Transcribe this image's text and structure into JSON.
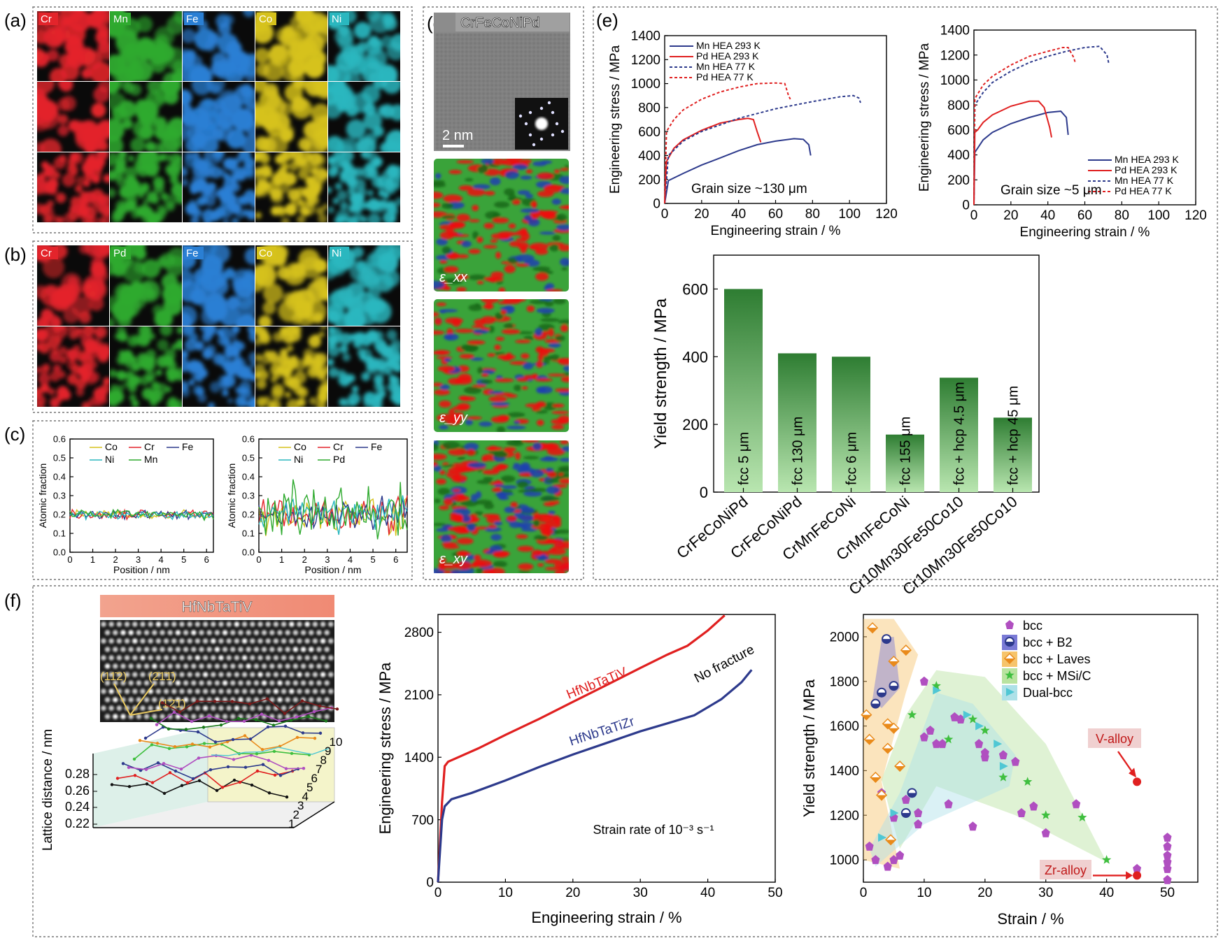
{
  "colors": {
    "cr": "#e3242b",
    "mn": "#2faa2f",
    "fe": "#2a7fd4",
    "co": "#d6c21c",
    "ni": "#2ab7bf",
    "pd": "#2faa2f",
    "bar_top": "#2e7d32",
    "bar_bottom": "#b9e6b0",
    "red": "#e02020",
    "blue": "#2d3a8c",
    "purple": "#b04fc0"
  },
  "panel_labels": {
    "a": "(a)",
    "b": "(b)",
    "c": "(c)",
    "d": "(d)",
    "e": "(e)",
    "f": "(f)"
  },
  "map_row_a": [
    "Cr",
    "Mn",
    "Fe",
    "Co",
    "Ni"
  ],
  "map_row_b": [
    "Cr",
    "Pd",
    "Fe",
    "Co",
    "Ni"
  ],
  "panel_d": {
    "title": "CrFeCoNiPd",
    "scale": "2 nm",
    "strain_labels": [
      "ε_xx",
      "ε_yy",
      "ε_xy"
    ]
  },
  "panel_f_image_title": "HfNbTaTiV",
  "miller": [
    "(11̄2)",
    "(2̄1̄1̄)",
    "(1̄2̄1̄)"
  ],
  "chart_data": [
    {
      "id": "c-left",
      "type": "line",
      "xlabel": "Position / nm",
      "ylabel": "Atomic fraction",
      "xlim": [
        0,
        6.3
      ],
      "ylim": [
        0,
        0.6
      ],
      "xticks": [
        "0",
        "1",
        "2",
        "3",
        "4",
        "5",
        "6"
      ],
      "yticks": [
        "0.0",
        "0.1",
        "0.2",
        "0.3",
        "0.4",
        "0.5",
        "0.6"
      ],
      "legend": [
        "Co",
        "Cr",
        "Fe",
        "Ni",
        "Mn"
      ],
      "series": [
        {
          "name": "Co",
          "color": "#d6c21c",
          "mean": 0.2,
          "amp": 0.03
        },
        {
          "name": "Cr",
          "color": "#e3242b",
          "mean": 0.2,
          "amp": 0.03
        },
        {
          "name": "Fe",
          "color": "#2d3a8c",
          "mean": 0.2,
          "amp": 0.03
        },
        {
          "name": "Ni",
          "color": "#2ab7bf",
          "mean": 0.2,
          "amp": 0.03
        },
        {
          "name": "Mn",
          "color": "#2faa2f",
          "mean": 0.2,
          "amp": 0.03
        }
      ]
    },
    {
      "id": "c-right",
      "type": "line",
      "xlabel": "Position / nm",
      "ylabel": "Atomic fraction",
      "xlim": [
        0,
        6.5
      ],
      "ylim": [
        0,
        0.6
      ],
      "xticks": [
        "0",
        "1",
        "2",
        "3",
        "4",
        "5",
        "6"
      ],
      "yticks": [
        "0.0",
        "0.1",
        "0.2",
        "0.3",
        "0.4",
        "0.5",
        "0.6"
      ],
      "legend": [
        "Co",
        "Cr",
        "Fe",
        "Ni",
        "Pd"
      ],
      "series": [
        {
          "name": "Co",
          "color": "#d6c21c",
          "mean": 0.2,
          "amp": 0.12
        },
        {
          "name": "Cr",
          "color": "#e3242b",
          "mean": 0.2,
          "amp": 0.12
        },
        {
          "name": "Fe",
          "color": "#2d3a8c",
          "mean": 0.2,
          "amp": 0.12
        },
        {
          "name": "Ni",
          "color": "#2ab7bf",
          "mean": 0.2,
          "amp": 0.12
        },
        {
          "name": "Pd",
          "color": "#2faa2f",
          "mean": 0.22,
          "amp": 0.18
        }
      ]
    },
    {
      "id": "e-left",
      "type": "line",
      "xlabel": "Engineering strain / %",
      "ylabel": "Engineering stress / MPa",
      "xlim": [
        0,
        120
      ],
      "ylim": [
        0,
        1400
      ],
      "xticks": [
        "0",
        "20",
        "40",
        "60",
        "80",
        "100",
        "120"
      ],
      "yticks": [
        "0",
        "200",
        "400",
        "600",
        "800",
        "1000",
        "1200",
        "1400"
      ],
      "annotation": "Grain size ~130 μm",
      "series": [
        {
          "name": "Mn HEA 293 K",
          "color": "#2d3a8c",
          "dash": false,
          "x": [
            0,
            2,
            10,
            20,
            30,
            40,
            50,
            60,
            70,
            75,
            78,
            79
          ],
          "y": [
            0,
            190,
            250,
            320,
            380,
            440,
            490,
            520,
            540,
            535,
            490,
            400
          ]
        },
        {
          "name": "Pd HEA 293 K",
          "color": "#e02020",
          "dash": false,
          "x": [
            0,
            1,
            5,
            10,
            20,
            30,
            40,
            45,
            48,
            50,
            52
          ],
          "y": [
            0,
            350,
            460,
            530,
            610,
            670,
            700,
            710,
            700,
            600,
            510
          ]
        },
        {
          "name": "Mn HEA 77 K",
          "color": "#2d3a8c",
          "dash": true,
          "x": [
            0,
            2,
            10,
            20,
            40,
            60,
            80,
            95,
            102,
            105,
            106
          ],
          "y": [
            0,
            400,
            520,
            600,
            710,
            790,
            850,
            890,
            900,
            880,
            840
          ]
        },
        {
          "name": "Pd HEA 77 K",
          "color": "#e02020",
          "dash": true,
          "x": [
            0,
            1,
            5,
            10,
            20,
            30,
            40,
            50,
            60,
            65,
            67,
            68
          ],
          "y": [
            0,
            600,
            700,
            780,
            870,
            930,
            970,
            1000,
            1005,
            1000,
            900,
            870
          ]
        }
      ]
    },
    {
      "id": "e-right",
      "type": "line",
      "xlabel": "Engineering strain / %",
      "ylabel": "Engineering stress / MPa",
      "xlim": [
        0,
        120
      ],
      "ylim": [
        0,
        1400
      ],
      "xticks": [
        "0",
        "20",
        "40",
        "60",
        "80",
        "100",
        "120"
      ],
      "yticks": [
        "0",
        "200",
        "400",
        "600",
        "800",
        "1000",
        "1200",
        "1400"
      ],
      "annotation": "Grain size ~5 μm",
      "series": [
        {
          "name": "Mn HEA 293 K",
          "color": "#2d3a8c",
          "dash": false,
          "x": [
            0,
            0.5,
            5,
            10,
            20,
            30,
            40,
            47,
            50,
            51
          ],
          "y": [
            0,
            420,
            520,
            580,
            650,
            700,
            740,
            750,
            700,
            560
          ]
        },
        {
          "name": "Pd HEA 293 K",
          "color": "#e02020",
          "dash": false,
          "x": [
            0,
            0.5,
            2,
            5,
            10,
            20,
            30,
            35,
            38,
            41,
            42
          ],
          "y": [
            0,
            580,
            600,
            660,
            720,
            790,
            830,
            830,
            780,
            620,
            540
          ]
        },
        {
          "name": "Mn HEA 77 K",
          "color": "#2d3a8c",
          "dash": true,
          "x": [
            0,
            0.5,
            5,
            10,
            20,
            30,
            40,
            50,
            60,
            68,
            72,
            73
          ],
          "y": [
            0,
            800,
            900,
            980,
            1070,
            1140,
            1190,
            1230,
            1260,
            1270,
            1200,
            1130
          ]
        },
        {
          "name": "Pd HEA 77 K",
          "color": "#e02020",
          "dash": true,
          "x": [
            0,
            0.5,
            5,
            10,
            20,
            30,
            40,
            48,
            51,
            54,
            55
          ],
          "y": [
            0,
            850,
            960,
            1030,
            1120,
            1190,
            1230,
            1260,
            1260,
            1180,
            1130
          ]
        }
      ]
    },
    {
      "id": "e-bar",
      "type": "bar",
      "ylabel": "Yield strength / MPa",
      "ylim": [
        0,
        700
      ],
      "yticks": [
        "0",
        "200",
        "400",
        "600"
      ],
      "categories": [
        "CrFeCoNiPd",
        "CrFeCoNiPd",
        "CrMnFeCoNi",
        "CrMnFeCoNi",
        "Cr10Mn30Fe50Co10",
        "Cr10Mn30Fe50Co10"
      ],
      "bar_labels": [
        "fcc 5 μm",
        "fcc 130 μm",
        "fcc 6 μm",
        "fcc 155 μm",
        "fcc + hcp 4.5 μm",
        "fcc + hcp 45 μm"
      ],
      "values": [
        600,
        410,
        400,
        170,
        338,
        220
      ]
    },
    {
      "id": "f-3d",
      "type": "line",
      "ylabel": "Lattice distance / nm",
      "yticks": [
        "0.22",
        "0.24",
        "0.26",
        "0.28"
      ],
      "depth_ticks": [
        "1",
        "2",
        "3",
        "4",
        "5",
        "6",
        "7",
        "8",
        "9",
        "10"
      ]
    },
    {
      "id": "f-mid",
      "type": "line",
      "xlabel": "Engineering strain / %",
      "ylabel": "Engineering stress / MPa",
      "xlim": [
        0,
        50
      ],
      "ylim": [
        0,
        3000
      ],
      "xticks": [
        "0",
        "10",
        "20",
        "30",
        "40",
        "50"
      ],
      "yticks": [
        "0",
        "700",
        "1400",
        "2100",
        "2800"
      ],
      "annotations": [
        "No fracture",
        "Strain rate of 10⁻³ s⁻¹"
      ],
      "series": [
        {
          "name": "HfNbTaTiV",
          "color": "#e02020",
          "x": [
            0,
            0.6,
            1,
            1.5,
            3,
            6,
            10,
            15,
            20,
            25,
            30,
            34,
            37,
            40,
            42.5
          ],
          "y": [
            0,
            900,
            1300,
            1350,
            1400,
            1500,
            1650,
            1830,
            2020,
            2210,
            2400,
            2550,
            2650,
            2820,
            2990
          ]
        },
        {
          "name": "HfNbTaTiZr",
          "color": "#2d3a8c",
          "x": [
            0,
            0.6,
            1,
            2,
            5,
            10,
            15,
            20,
            25,
            30,
            34,
            38,
            42,
            45,
            46.5
          ],
          "y": [
            0,
            700,
            850,
            930,
            1000,
            1140,
            1290,
            1430,
            1560,
            1690,
            1780,
            1870,
            2050,
            2240,
            2380
          ]
        }
      ]
    },
    {
      "id": "f-right",
      "type": "scatter",
      "xlabel": "Strain / %",
      "ylabel": "Yield strength / MPa",
      "xlim": [
        0,
        55
      ],
      "ylim": [
        900,
        2100
      ],
      "xticks": [
        "0",
        "10",
        "20",
        "30",
        "40",
        "50"
      ],
      "yticks": [
        "1000",
        "1200",
        "1400",
        "1600",
        "1800",
        "2000"
      ],
      "legend": [
        "bcc",
        "bcc + B2",
        "bcc + Laves",
        "bcc + MSi/C",
        "Dual-bcc"
      ],
      "annotations": [
        "V-alloy",
        "Zr-alloy"
      ],
      "series": [
        {
          "name": "bcc",
          "color": "#b04fc0",
          "points": [
            [
              1,
              1060
            ],
            [
              2,
              1000
            ],
            [
              3,
              1300
            ],
            [
              4,
              970
            ],
            [
              5,
              1000
            ],
            [
              6,
              1020
            ],
            [
              7,
              1270
            ],
            [
              8,
              1300
            ],
            [
              9,
              1210
            ],
            [
              9,
              1160
            ],
            [
              10,
              1550
            ],
            [
              10,
              1800
            ],
            [
              11,
              1580
            ],
            [
              12,
              1520
            ],
            [
              13,
              1520
            ],
            [
              14,
              1250
            ],
            [
              15,
              1640
            ],
            [
              16,
              1630
            ],
            [
              18,
              1150
            ],
            [
              19,
              1520
            ],
            [
              20,
              1480
            ],
            [
              20,
              1460
            ],
            [
              23,
              1470
            ],
            [
              25,
              1440
            ],
            [
              26,
              1210
            ],
            [
              28,
              1240
            ],
            [
              30,
              1120
            ],
            [
              35,
              1250
            ],
            [
              5,
              1190
            ],
            [
              45,
              960
            ],
            [
              50,
              1100
            ],
            [
              50,
              1060
            ],
            [
              50,
              1020
            ],
            [
              50,
              990
            ],
            [
              50,
              960
            ],
            [
              50,
              910
            ]
          ]
        },
        {
          "name": "bcc + B2",
          "color": "#2d3a8c",
          "points": [
            [
              2,
              1700
            ],
            [
              3,
              1750
            ],
            [
              3.8,
              1990
            ],
            [
              5,
              1780
            ],
            [
              7,
              1210
            ],
            [
              8,
              1300
            ]
          ]
        },
        {
          "name": "bcc + Laves",
          "color": "#e98a1a",
          "points": [
            [
              0.5,
              1650
            ],
            [
              1,
              1540
            ],
            [
              1.5,
              2040
            ],
            [
              2,
              1370
            ],
            [
              3,
              1290
            ],
            [
              4,
              1610
            ],
            [
              4,
              1500
            ],
            [
              5,
              1890
            ],
            [
              5,
              1590
            ],
            [
              6,
              1420
            ],
            [
              7,
              1940
            ],
            [
              4.5,
              1090
            ]
          ]
        },
        {
          "name": "bcc + MSi/C",
          "color": "#3fbf3f",
          "points": [
            [
              8,
              1650
            ],
            [
              12,
              1780
            ],
            [
              14,
              1540
            ],
            [
              18,
              1630
            ],
            [
              20,
              1580
            ],
            [
              23,
              1370
            ],
            [
              27,
              1350
            ],
            [
              30,
              1200
            ],
            [
              36,
              1190
            ],
            [
              40,
              1000
            ]
          ]
        },
        {
          "name": "Dual-bcc",
          "color": "#4fc7d4",
          "points": [
            [
              12,
              1760
            ],
            [
              17,
              1650
            ],
            [
              19,
              1600
            ],
            [
              22,
              1520
            ],
            [
              23,
              1420
            ],
            [
              5,
              1210
            ],
            [
              3,
              1100
            ]
          ]
        },
        {
          "name": "V-alloy",
          "color": "#e02020",
          "points": [
            [
              45,
              1350
            ]
          ]
        },
        {
          "name": "Zr-alloy",
          "color": "#e02020",
          "points": [
            [
              45,
              930
            ]
          ]
        }
      ]
    }
  ]
}
